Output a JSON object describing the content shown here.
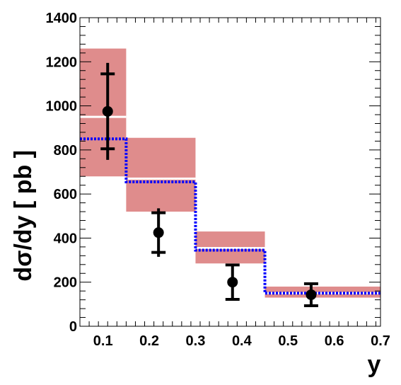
{
  "chart_data": {
    "type": "scatter",
    "title": "",
    "xlabel": "y",
    "ylabel": "dσ/dy [ pb ]",
    "xlim": [
      0.05,
      0.7
    ],
    "ylim": [
      0,
      1400
    ],
    "x_ticks": [
      {
        "value": 0.1,
        "label": "0.1"
      },
      {
        "value": 0.2,
        "label": "0.2"
      },
      {
        "value": 0.3,
        "label": "0.3"
      },
      {
        "value": 0.4,
        "label": "0.4"
      },
      {
        "value": 0.5,
        "label": "0.5"
      },
      {
        "value": 0.6,
        "label": "0.6"
      },
      {
        "value": 0.7,
        "label": "0.7"
      }
    ],
    "y_ticks": [
      {
        "value": 0,
        "label": "0"
      },
      {
        "value": 200,
        "label": "200"
      },
      {
        "value": 400,
        "label": "400"
      },
      {
        "value": 600,
        "label": "600"
      },
      {
        "value": 800,
        "label": "800"
      },
      {
        "value": 1000,
        "label": "1000"
      },
      {
        "value": 1200,
        "label": "1200"
      },
      {
        "value": 1400,
        "label": "1400"
      }
    ],
    "grid": false,
    "legend": "none",
    "series": [
      {
        "kind": "points",
        "color": "#000000",
        "x": [
          0.11,
          0.22,
          0.38,
          0.55
        ],
        "y": [
          975,
          425,
          200,
          143
        ],
        "err_low": [
          220,
          110,
          78,
          50
        ],
        "err_high": [
          220,
          110,
          78,
          50
        ],
        "stat_low": [
          170,
          90,
          78,
          50
        ],
        "stat_high": [
          170,
          90,
          78,
          50
        ]
      },
      {
        "kind": "bands",
        "color": "#df8c8c",
        "bins": [
          {
            "x_low": 0.05,
            "x_high": 0.15,
            "center": 950,
            "y_low": 680,
            "y_high": 1260
          },
          {
            "x_low": 0.15,
            "x_high": 0.3,
            "center": 670,
            "y_low": 520,
            "y_high": 855
          },
          {
            "x_low": 0.3,
            "x_high": 0.45,
            "center": 355,
            "y_low": 285,
            "y_high": 430
          },
          {
            "x_low": 0.45,
            "x_high": 0.7,
            "center": 150,
            "y_low": 130,
            "y_high": 180
          }
        ]
      },
      {
        "kind": "step",
        "color": "#0000ff",
        "bins": [
          {
            "x_low": 0.05,
            "x_high": 0.15,
            "value": 850
          },
          {
            "x_low": 0.15,
            "x_high": 0.3,
            "value": 655
          },
          {
            "x_low": 0.3,
            "x_high": 0.45,
            "value": 345
          },
          {
            "x_low": 0.45,
            "x_high": 0.7,
            "value": 150
          }
        ]
      }
    ]
  }
}
